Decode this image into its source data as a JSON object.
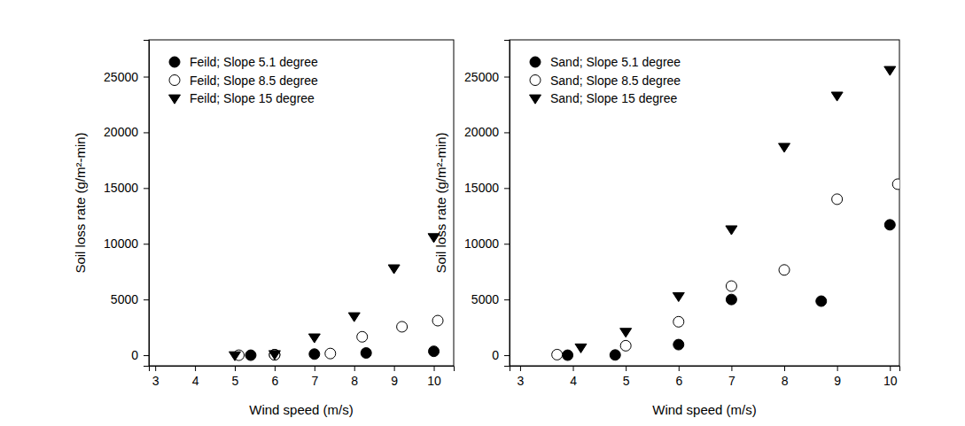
{
  "chart_data": [
    {
      "type": "scatter",
      "x_label": "Wind speed (m/s)",
      "y_label": "Soil loss rate (g/m²-min)",
      "xlim": [
        2.84,
        10.5
      ],
      "xticks": [
        3,
        4,
        5,
        6,
        7,
        8,
        9,
        10
      ],
      "ylim": [
        -950,
        28300
      ],
      "yticks": [
        0,
        5000,
        10000,
        15000,
        20000,
        25000
      ],
      "legend": "upper left",
      "series": [
        {
          "name": "Feild; Slope 5.1 degree",
          "color": "#000000",
          "marker": "circle",
          "x": [
            5.4,
            6,
            7,
            8.3,
            10
          ],
          "values": [
            0,
            50,
            100,
            200,
            350
          ]
        },
        {
          "name": "Feild; Slope 8.5 degree",
          "color": "#000000",
          "marker": "open-circle",
          "x": [
            5.1,
            6,
            7.4,
            8.2,
            9.2,
            10.1
          ],
          "values": [
            0,
            30,
            150,
            1650,
            2550,
            3100
          ]
        },
        {
          "name": "Feild; Slope 15 degree",
          "color": "#000000",
          "marker": "triangle-down",
          "x": [
            5,
            6,
            7,
            8,
            9,
            10
          ],
          "values": [
            0,
            100,
            1600,
            3500,
            7800,
            10600
          ]
        }
      ]
    },
    {
      "type": "scatter",
      "x_label": "Wind speed (m/s)",
      "y_label": "Soil loss rate (g/m²-min)",
      "xlim": [
        2.8,
        10.18
      ],
      "xticks": [
        3,
        4,
        5,
        6,
        7,
        8,
        9,
        10
      ],
      "ylim": [
        -950,
        28300
      ],
      "yticks": [
        0,
        5000,
        10000,
        15000,
        20000,
        25000
      ],
      "legend": "upper left",
      "series": [
        {
          "name": "Sand; Slope 5.1 degree",
          "color": "#000000",
          "marker": "circle",
          "x": [
            3.9,
            4.8,
            6,
            7,
            8.7,
            10
          ],
          "values": [
            0,
            20,
            950,
            5000,
            4850,
            11700
          ]
        },
        {
          "name": "Sand; Slope 8.5 degree",
          "color": "#000000",
          "marker": "open-circle",
          "x": [
            3.7,
            5,
            6,
            7,
            8,
            9,
            10.15
          ],
          "values": [
            50,
            850,
            3000,
            6200,
            7650,
            14000,
            15350
          ]
        },
        {
          "name": "Sand; Slope 15 degree",
          "color": "#000000",
          "marker": "triangle-down",
          "x": [
            4.15,
            5,
            6,
            7,
            8,
            9,
            10
          ],
          "values": [
            700,
            2100,
            5300,
            11300,
            18700,
            23300,
            25600
          ]
        }
      ]
    }
  ]
}
